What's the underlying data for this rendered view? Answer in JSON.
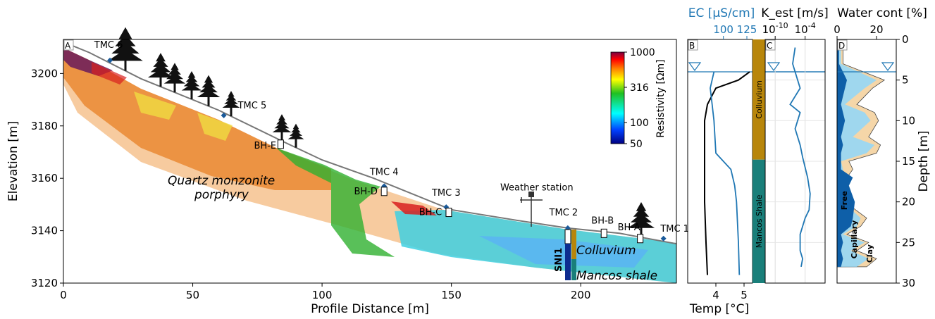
{
  "chart_data": [
    {
      "panel": "A",
      "type": "scatter",
      "xlabel": "Profile Distance [m]",
      "ylabel": "Elevation [m]",
      "xlim": [
        0,
        237
      ],
      "ylim": [
        3120,
        3213
      ],
      "xticks": [
        "0",
        "50",
        "100",
        "150",
        "200"
      ],
      "yticks": [
        "3120",
        "3140",
        "3160",
        "3180",
        "3200"
      ],
      "colorbar": {
        "label": "Resistivity [Ωm]",
        "scale": "log",
        "ticks": [
          "1000",
          "316",
          "100",
          "50"
        ],
        "colors": [
          "#000080",
          "#0050ff",
          "#00ffff",
          "#00c000",
          "#ffff00",
          "#ff8000",
          "#ff0000",
          "#800040"
        ]
      },
      "surface": [
        [
          0,
          3212
        ],
        [
          10,
          3208
        ],
        [
          30,
          3198
        ],
        [
          60,
          3186
        ],
        [
          85,
          3174
        ],
        [
          100,
          3167
        ],
        [
          120,
          3160
        ],
        [
          150,
          3148
        ],
        [
          175,
          3144
        ],
        [
          195,
          3141
        ],
        [
          215,
          3139
        ],
        [
          237,
          3135
        ]
      ],
      "points": [
        {
          "label": "TMC 6",
          "x": 18,
          "y": 3205
        },
        {
          "label": "TMC 5",
          "x": 62,
          "y": 3184
        },
        {
          "label": "BH-E",
          "x": 84,
          "y": 3173
        },
        {
          "label": "TMC 4",
          "x": 124,
          "y": 3157
        },
        {
          "label": "BH-D",
          "x": 124,
          "y": 3155
        },
        {
          "label": "TMC 3",
          "x": 148,
          "y": 3149
        },
        {
          "label": "BH-C",
          "x": 149,
          "y": 3147
        },
        {
          "label": "Weather station",
          "x": 183,
          "y": 3144
        },
        {
          "label": "TMC 2",
          "x": 195,
          "y": 3141
        },
        {
          "label": "BH-B",
          "x": 209,
          "y": 3139
        },
        {
          "label": "BH-A",
          "x": 223,
          "y": 3137
        },
        {
          "label": "TMC 1",
          "x": 232,
          "y": 3137
        }
      ],
      "annotations": [
        "Quartz monzonite",
        "porphyry",
        "Colluvium",
        "Mancos shale",
        "SNI1"
      ]
    },
    {
      "panel": "B",
      "type": "line",
      "xlabel": "Temp [°C]",
      "x2label": "EC [μS/cm]",
      "ylabel": "Depth [m]",
      "ylim": [
        0,
        30
      ],
      "xticks": [
        "4",
        "5"
      ],
      "x2ticks": [
        "100",
        "125"
      ],
      "yticks": [
        "0",
        "5",
        "10",
        "15",
        "20",
        "25",
        "30"
      ],
      "water_table_depth": 3.8,
      "series": [
        {
          "name": "Temp [°C]",
          "color": "#000000",
          "x": [
            5.2,
            4.8,
            4.0,
            3.7,
            3.6,
            3.6,
            3.6,
            3.65,
            3.7
          ],
          "y": [
            4,
            5,
            6,
            8,
            10,
            14,
            20,
            25,
            29
          ]
        },
        {
          "name": "EC [μS/cm]",
          "color": "#1f77b4",
          "x": [
            90,
            86,
            88,
            90,
            92,
            108,
            112,
            114,
            116,
            117
          ],
          "y": [
            4,
            6,
            8,
            10,
            14,
            16,
            18,
            20,
            25,
            29
          ]
        }
      ]
    },
    {
      "panel": "C",
      "type": "line",
      "x2label": "K_est [m/s]",
      "x2ticks": [
        "10^-10",
        "10^-4"
      ],
      "log_scale": true,
      "layers": [
        {
          "name": "Colluvium",
          "top": 0,
          "bottom": 14.8,
          "color": "#b8860b"
        },
        {
          "name": "Mancos Shale",
          "top": 14.8,
          "bottom": 30,
          "color": "#1a7f7a"
        }
      ],
      "series": [
        {
          "name": "K_est",
          "color": "#1f77b4",
          "x": [
            -6,
            -6.5,
            -6,
            -5,
            -7,
            -5,
            -6,
            -5,
            -4.5,
            -3.5,
            -3,
            -3.2,
            -4,
            -5,
            -5,
            -4.5,
            -4.8
          ],
          "y": [
            1,
            3,
            4,
            6,
            8,
            9,
            11,
            13,
            14.5,
            17,
            19,
            21,
            22,
            24,
            26,
            27,
            28
          ]
        }
      ]
    },
    {
      "panel": "D",
      "type": "area",
      "x2label": "Water cont [%]",
      "x2ticks": [
        "0",
        "20"
      ],
      "series": [
        {
          "name": "Free",
          "color": "#0e5fa8"
        },
        {
          "name": "Capillary",
          "color": "#9fd7ee"
        },
        {
          "name": "Clay",
          "color": "#f5d6a8"
        }
      ],
      "depth": [
        1,
        3,
        5,
        6,
        8,
        9,
        10,
        12,
        13,
        14,
        15,
        16,
        17,
        18,
        20,
        22,
        23,
        24,
        25,
        26,
        27,
        28
      ],
      "clay": [
        3,
        3,
        24,
        18,
        10,
        19,
        21,
        16,
        22,
        20,
        6,
        8,
        5,
        3,
        4,
        15,
        12,
        5,
        16,
        10,
        20,
        15
      ],
      "capillary": [
        2,
        2,
        20,
        14,
        4,
        14,
        17,
        8,
        19,
        15,
        2,
        3,
        2,
        2,
        3,
        12,
        10,
        3,
        14,
        7,
        16,
        10
      ],
      "free": [
        1,
        1,
        5,
        4,
        2,
        3,
        4,
        2,
        3,
        2,
        2,
        2,
        8,
        6,
        9,
        8,
        7,
        2,
        3,
        2,
        3,
        2
      ]
    }
  ]
}
